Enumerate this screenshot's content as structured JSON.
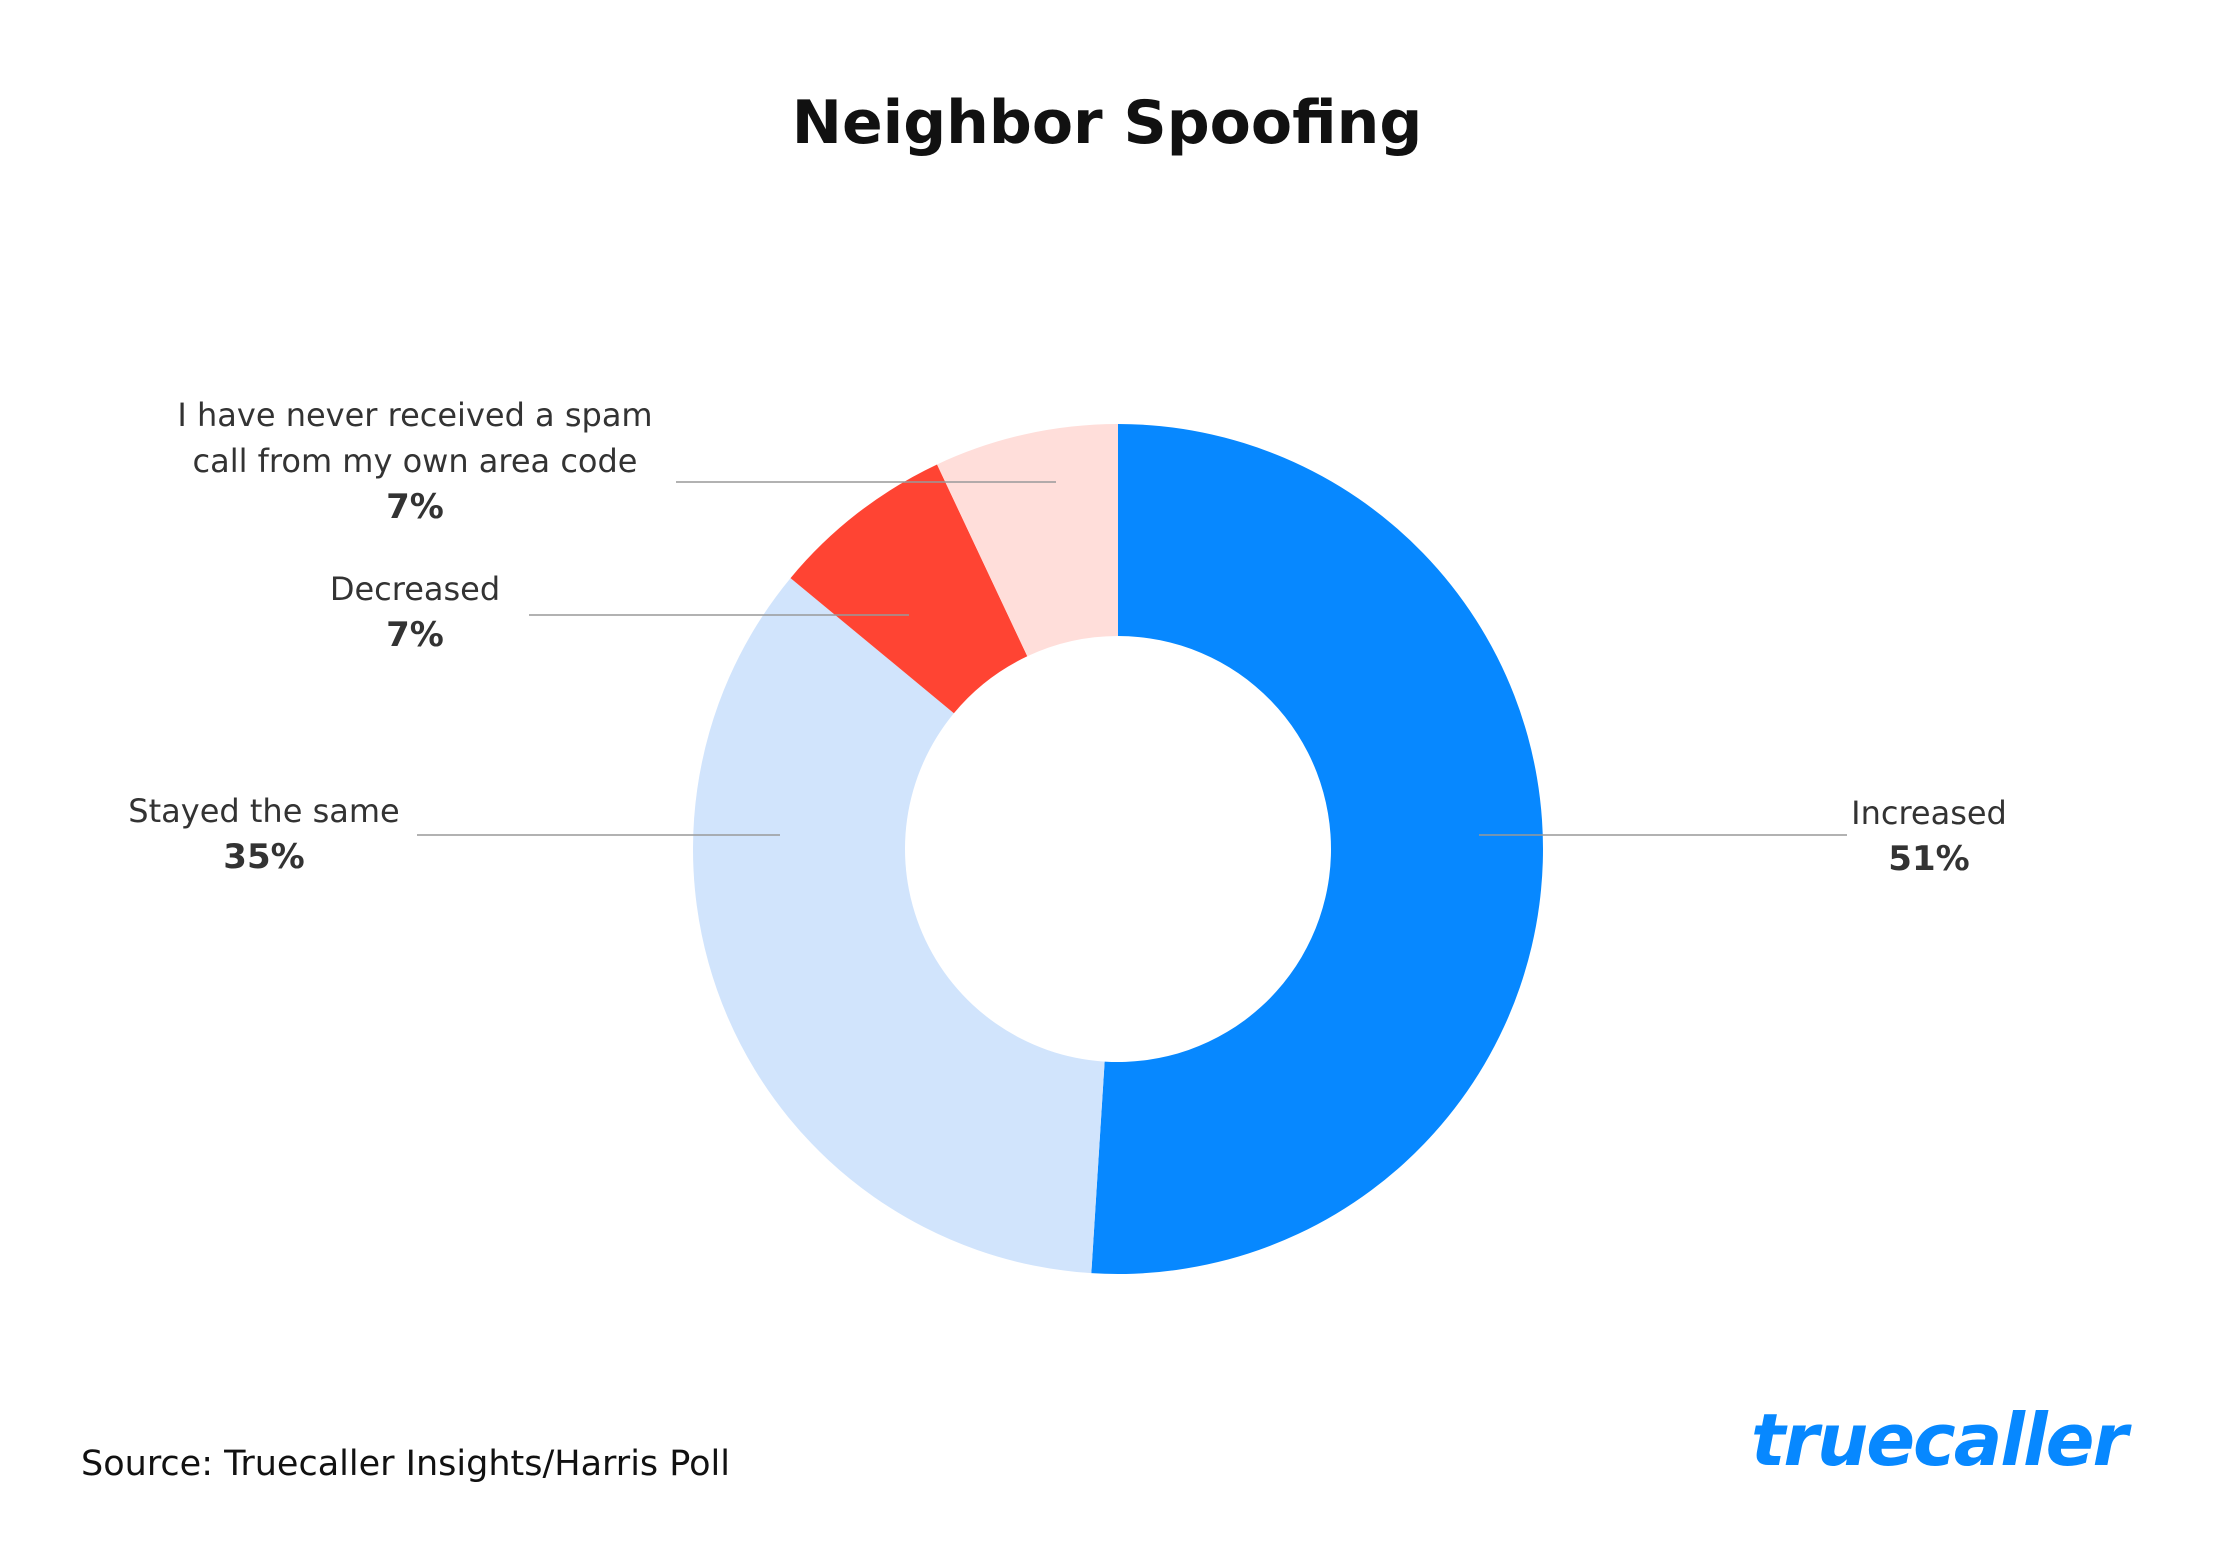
{
  "chart_data": {
    "type": "donut",
    "title": "Neighbor Spoofing",
    "categories": [
      "Increased",
      "Stayed the same",
      "Decreased",
      "I have never received a spam call from my own area code"
    ],
    "values": [
      51,
      35,
      7,
      7
    ],
    "value_labels": [
      "51%",
      "35%",
      "7%",
      "7%"
    ],
    "colors": [
      "#0788ff",
      "#d1e4fc",
      "#ff4433",
      "#ffdeda"
    ]
  },
  "source": "Source: Truecaller Insights/Harris Poll",
  "logo": "truecaller"
}
